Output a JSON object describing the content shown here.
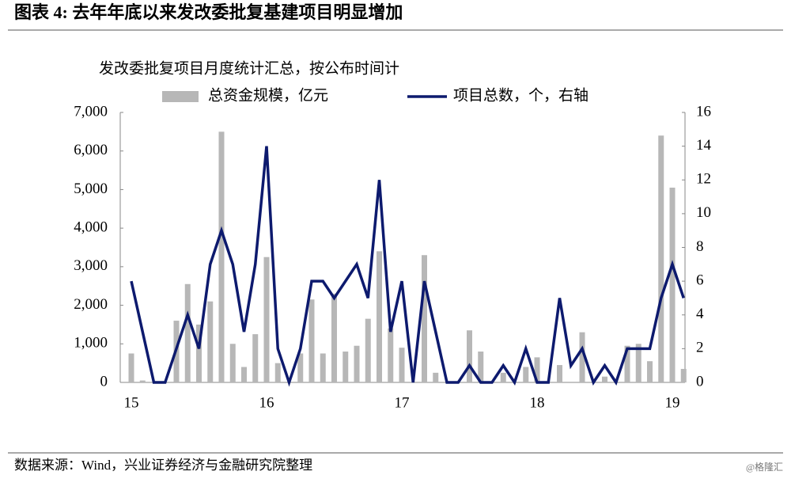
{
  "chart_data": {
    "type": "bar_line",
    "title": "图表 4:  去年年底以来发改委批复基建项目明显增加",
    "subtitle": "发改委批复项目月度统计汇总，按公布时间计",
    "source": "数据来源：Wind，兴业证券经济与金融研究院整理",
    "watermark": "@格隆汇",
    "categories": [
      "15",
      null,
      null,
      null,
      null,
      null,
      null,
      null,
      null,
      null,
      null,
      null,
      "16",
      null,
      null,
      null,
      null,
      null,
      null,
      null,
      null,
      null,
      null,
      null,
      "17",
      null,
      null,
      null,
      null,
      null,
      null,
      null,
      null,
      null,
      null,
      null,
      "18",
      null,
      null,
      null,
      null,
      null,
      null,
      null,
      null,
      null,
      null,
      null,
      "19",
      null
    ],
    "series": [
      {
        "name": "总资金规模，亿元",
        "type": "bar",
        "color": "#b7b7b7",
        "axis": "y",
        "values": [
          750,
          50,
          0,
          0,
          1600,
          2550,
          1500,
          2100,
          6500,
          1000,
          400,
          1250,
          3250,
          500,
          0,
          750,
          2150,
          750,
          2300,
          800,
          950,
          1650,
          3400,
          1400,
          900,
          0,
          3300,
          250,
          0,
          0,
          1350,
          800,
          0,
          250,
          0,
          400,
          650,
          0,
          450,
          0,
          1300,
          0,
          150,
          0,
          950,
          1000,
          550,
          6400,
          5050,
          350
        ]
      },
      {
        "name": "项目总数，个，右轴",
        "type": "line",
        "color": "#0d1a6e",
        "axis": "y2",
        "values": [
          6,
          3,
          0,
          0,
          2,
          4,
          2,
          7,
          9,
          7,
          3,
          7,
          14,
          2,
          0,
          2,
          6,
          6,
          5,
          6,
          7,
          5,
          12,
          3,
          6,
          0,
          6,
          3,
          0,
          0,
          1,
          0,
          0,
          1,
          0,
          2,
          0,
          0,
          5,
          1,
          2,
          0,
          1,
          0,
          2,
          2,
          2,
          5,
          7,
          5
        ]
      }
    ],
    "ylim": [
      0,
      7000
    ],
    "yticks": [
      0,
      {
        "value": 1000,
        "label": "1,000"
      },
      {
        "value": 2000,
        "label": "2,000"
      },
      {
        "value": 3000,
        "label": "3,000"
      },
      {
        "value": 4000,
        "label": "4,000"
      },
      {
        "value": 5000,
        "label": "5,000"
      },
      {
        "value": 6000,
        "label": "6,000"
      },
      {
        "value": 7000,
        "label": "7,000"
      }
    ],
    "y2lim": [
      0,
      16
    ],
    "y2ticks": [
      0,
      2,
      4,
      6,
      8,
      10,
      12,
      14,
      16
    ],
    "legend": "top",
    "grid": false
  }
}
